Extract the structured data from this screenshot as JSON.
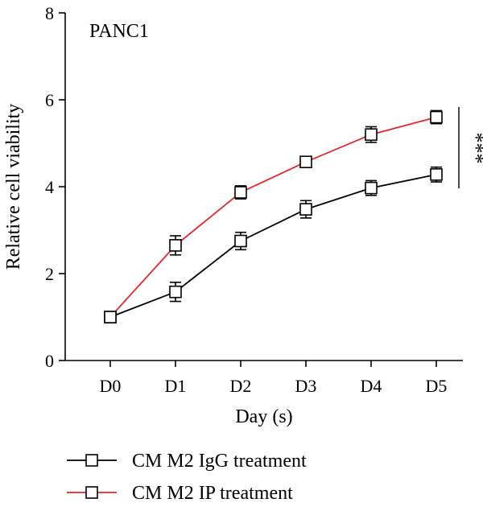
{
  "chart_data": {
    "type": "line",
    "title": "PANC1",
    "xlabel": "Day (s)",
    "ylabel": "Relative cell viability",
    "categories": [
      "D0",
      "D1",
      "D2",
      "D3",
      "D4",
      "D5"
    ],
    "ylim": [
      0,
      8
    ],
    "yticks": [
      0,
      2,
      4,
      6,
      8
    ],
    "grid": false,
    "legend_position": "bottom",
    "series": [
      {
        "name": "CM M2 IgG treatment",
        "color": "#000000",
        "values": [
          1.0,
          1.58,
          2.75,
          3.48,
          3.97,
          4.28
        ],
        "errors": [
          0.12,
          0.22,
          0.2,
          0.2,
          0.17,
          0.17
        ]
      },
      {
        "name": "CM M2 IP treatment",
        "color": "#e8262a",
        "values": [
          1.0,
          2.65,
          3.87,
          4.57,
          5.2,
          5.6
        ],
        "errors": [
          0.12,
          0.22,
          0.15,
          0.12,
          0.18,
          0.15
        ]
      }
    ],
    "annotation": "***"
  }
}
